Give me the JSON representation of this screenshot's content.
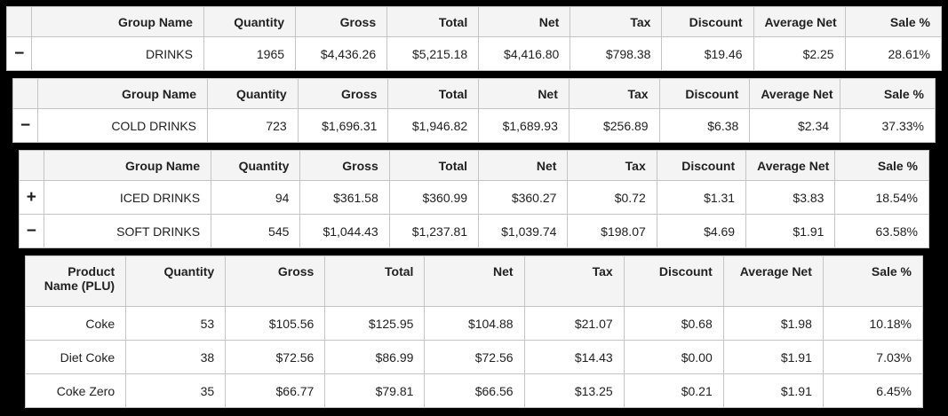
{
  "colors": {
    "page_bg": "#000000",
    "table_bg": "#ffffff",
    "header_bg": "#f4f4f4",
    "border": "#c4c4c4",
    "text": "#212121"
  },
  "group_headers": {
    "group_name": "Group Name",
    "quantity": "Quantity",
    "gross": "Gross",
    "total": "Total",
    "net": "Net",
    "tax": "Tax",
    "discount": "Discount",
    "average_net": "Average Net",
    "sale_pct": "Sale %"
  },
  "product_headers": {
    "product_name": "Product Name (PLU)",
    "quantity": "Quantity",
    "gross": "Gross",
    "total": "Total",
    "net": "Net",
    "tax": "Tax",
    "discount": "Discount",
    "average_net": "Average Net",
    "sale_pct": "Sale %"
  },
  "drinks": {
    "toggle": "−",
    "name": "DRINKS",
    "quantity": "1965",
    "gross": "$4,436.26",
    "total": "$5,215.18",
    "net": "$4,416.80",
    "tax": "$798.38",
    "discount": "$19.46",
    "average_net": "$2.25",
    "sale_pct": "28.61%"
  },
  "cold_drinks": {
    "toggle": "−",
    "name": "COLD DRINKS",
    "quantity": "723",
    "gross": "$1,696.31",
    "total": "$1,946.82",
    "net": "$1,689.93",
    "tax": "$256.89",
    "discount": "$6.38",
    "average_net": "$2.34",
    "sale_pct": "37.33%"
  },
  "subgroups": {
    "rows": [
      {
        "toggle": "+",
        "name": "ICED DRINKS",
        "quantity": "94",
        "gross": "$361.58",
        "total": "$360.99",
        "net": "$360.27",
        "tax": "$0.72",
        "discount": "$1.31",
        "average_net": "$3.83",
        "sale_pct": "18.54%"
      },
      {
        "toggle": "−",
        "name": "SOFT DRINKS",
        "quantity": "545",
        "gross": "$1,044.43",
        "total": "$1,237.81",
        "net": "$1,039.74",
        "tax": "$198.07",
        "discount": "$4.69",
        "average_net": "$1.91",
        "sale_pct": "63.58%"
      }
    ]
  },
  "products": {
    "rows": [
      {
        "name": "Coke",
        "quantity": "53",
        "gross": "$105.56",
        "total": "$125.95",
        "net": "$104.88",
        "tax": "$21.07",
        "discount": "$0.68",
        "average_net": "$1.98",
        "sale_pct": "10.18%"
      },
      {
        "name": "Diet Coke",
        "quantity": "38",
        "gross": "$72.56",
        "total": "$86.99",
        "net": "$72.56",
        "tax": "$14.43",
        "discount": "$0.00",
        "average_net": "$1.91",
        "sale_pct": "7.03%"
      },
      {
        "name": "Coke Zero",
        "quantity": "35",
        "gross": "$66.77",
        "total": "$79.81",
        "net": "$66.56",
        "tax": "$13.25",
        "discount": "$0.21",
        "average_net": "$1.91",
        "sale_pct": "6.45%"
      }
    ]
  }
}
